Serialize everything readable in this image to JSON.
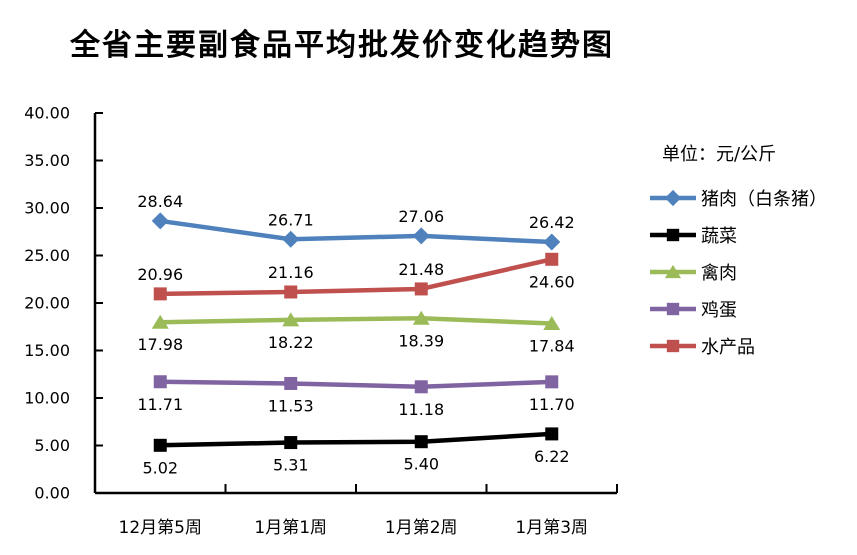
{
  "title": "全省主要副食品平均批发价变化趋势图",
  "unit_label": "单位：元/公斤",
  "colors": {
    "pork": "#4F81BD",
    "vegetables": "#000000",
    "poultry": "#9BBB59",
    "eggs": "#8064A2",
    "aquatic": "#C0504D",
    "axis": "#000000",
    "label_text": "#000000"
  },
  "chart_data": {
    "type": "line",
    "categories": [
      "12月第5周",
      "1月第1周",
      "1月第2周",
      "1月第3周"
    ],
    "series": [
      {
        "name": "猪肉（白条猪）",
        "key": "pork",
        "values": [
          28.64,
          26.71,
          27.06,
          26.42
        ],
        "color": "#4F81BD",
        "marker": "diamond",
        "label_positions": [
          "above",
          "above",
          "above",
          "above"
        ]
      },
      {
        "name": "蔬菜",
        "key": "vegetables",
        "values": [
          5.02,
          5.31,
          5.4,
          6.22
        ],
        "color": "#000000",
        "marker": "square",
        "label_positions": [
          "below",
          "below",
          "below",
          "below"
        ]
      },
      {
        "name": "禽肉",
        "key": "poultry",
        "values": [
          17.98,
          18.22,
          18.39,
          17.84
        ],
        "color": "#9BBB59",
        "marker": "triangle",
        "label_positions": [
          "below",
          "below",
          "below",
          "below"
        ]
      },
      {
        "name": "鸡蛋",
        "key": "eggs",
        "values": [
          11.71,
          11.53,
          11.18,
          11.7
        ],
        "color": "#8064A2",
        "marker": "square",
        "label_positions": [
          "below",
          "below",
          "below",
          "below"
        ]
      },
      {
        "name": "水产品",
        "key": "aquatic",
        "values": [
          20.96,
          21.16,
          21.48,
          24.6
        ],
        "color": "#C0504D",
        "marker": "square",
        "label_positions": [
          "above",
          "above",
          "above",
          "below"
        ]
      }
    ],
    "ylim": [
      0,
      40
    ],
    "ytick_step": 5,
    "ytick_labels": [
      "0.00",
      "5.00",
      "10.00",
      "15.00",
      "20.00",
      "25.00",
      "30.00",
      "35.00",
      "40.00"
    ],
    "grid": false,
    "legend_position": "right",
    "data_label_decimals": 2
  }
}
